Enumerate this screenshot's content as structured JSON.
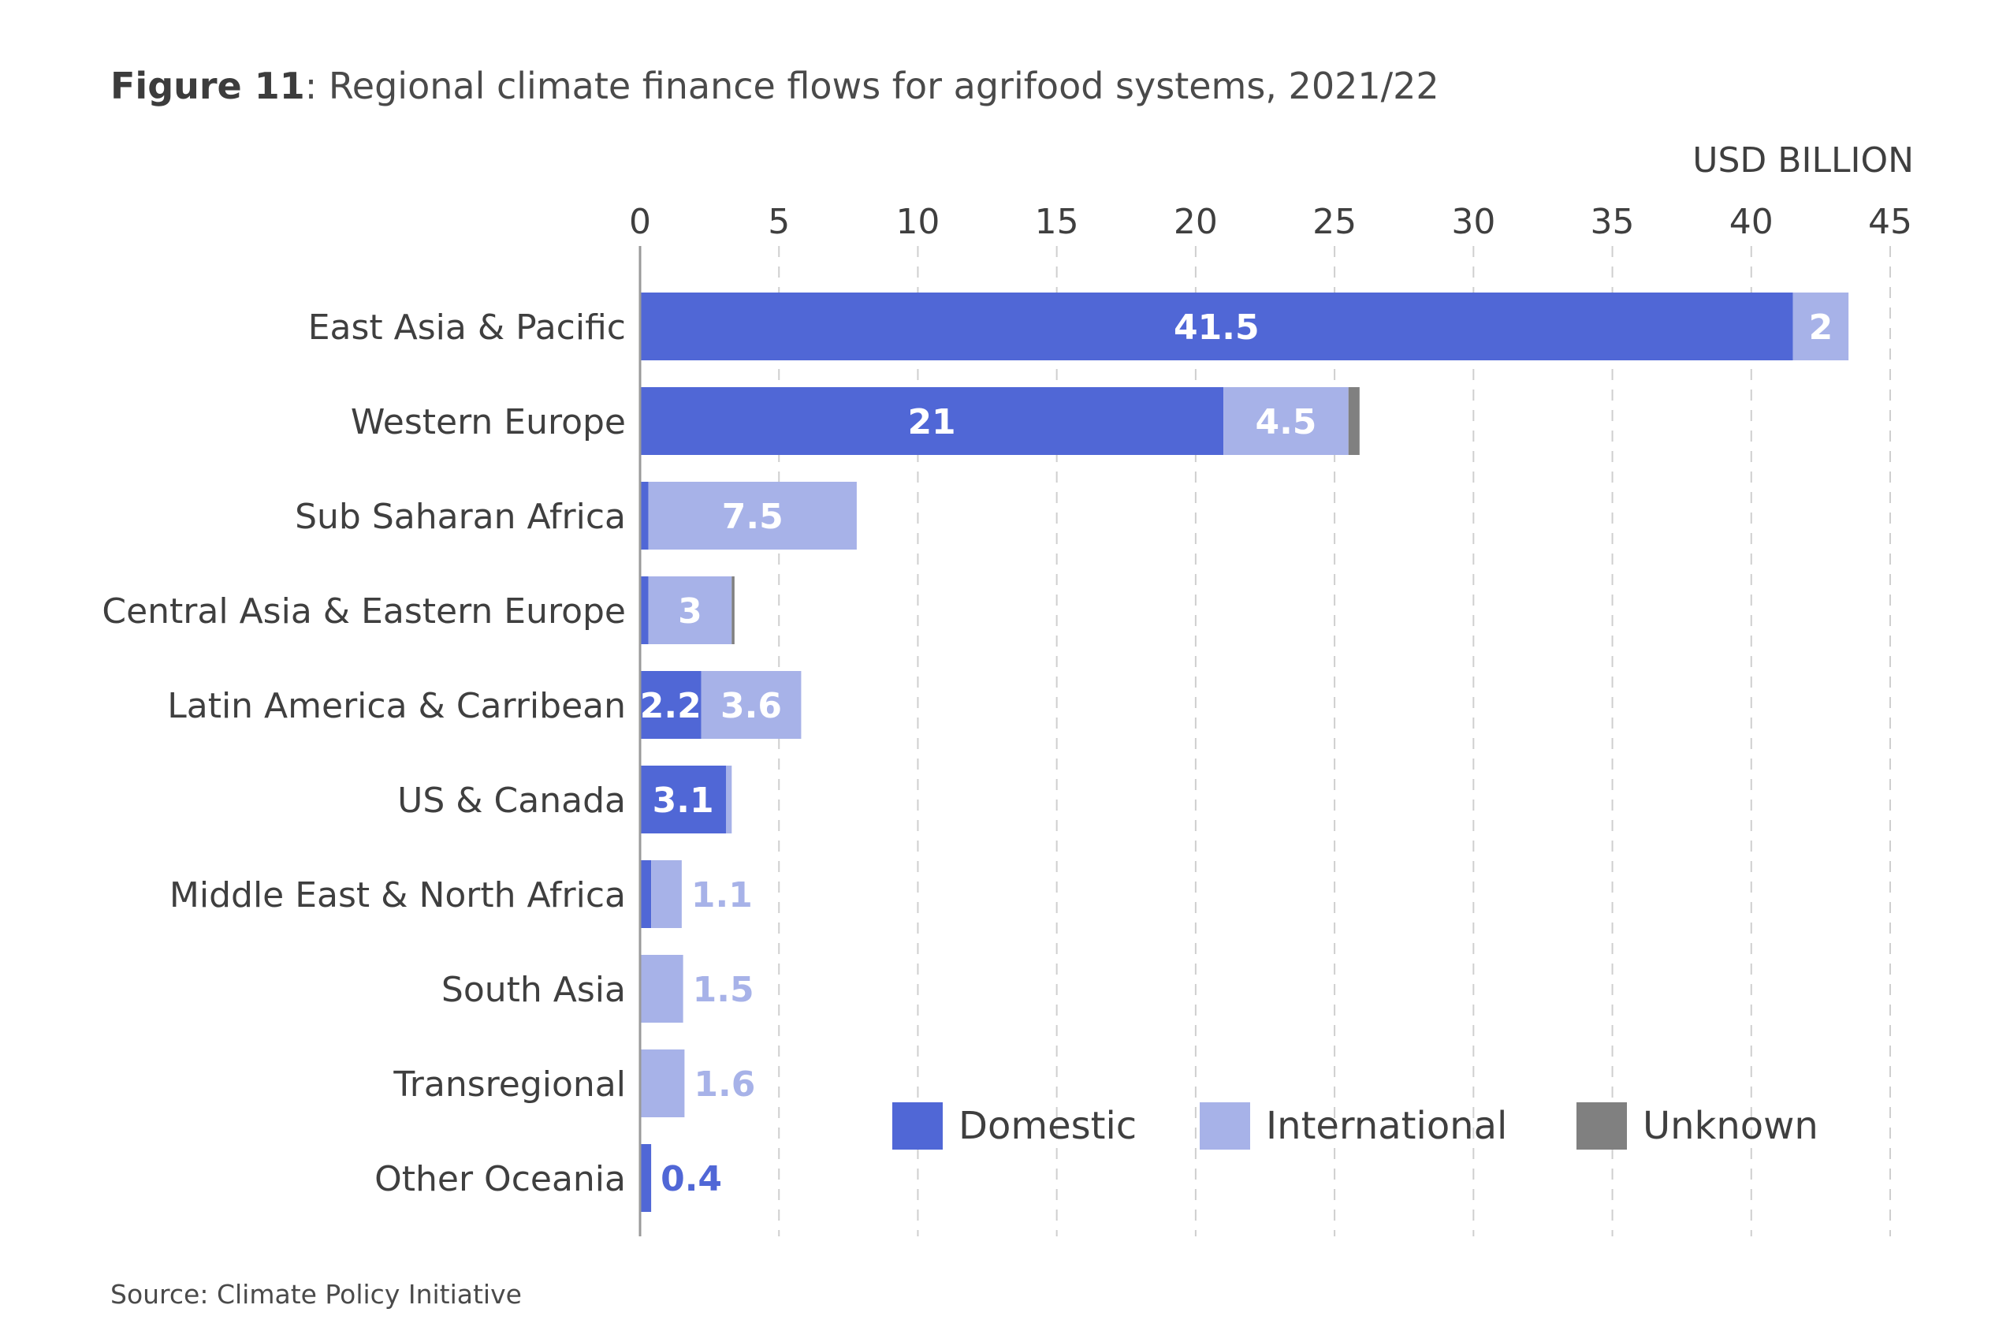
{
  "figure": {
    "label": "Figure 11",
    "title": ": Regional climate finance flows for agrifood systems, 2021/22",
    "source": "Source: Climate Policy Initiative"
  },
  "chart_data": {
    "type": "bar",
    "orientation": "horizontal",
    "stacked": true,
    "unit_label": "USD BILLION",
    "xlim": [
      0,
      45
    ],
    "x_ticks": [
      0,
      5,
      10,
      15,
      20,
      25,
      30,
      35,
      40,
      45
    ],
    "grid": "vertical dashed",
    "categories": [
      "East Asia & Pacific",
      "Western Europe",
      "Sub Saharan Africa",
      "Central Asia & Eastern Europe",
      "Latin America & Carribean",
      "US & Canada",
      "Middle East & North Africa",
      "South Asia",
      "Transregional",
      "Other Oceania"
    ],
    "series": [
      {
        "name": "Domestic",
        "color": "#5067d6",
        "values": [
          41.5,
          21,
          0.3,
          0.3,
          2.2,
          3.1,
          0.4,
          0.05,
          0,
          0.4
        ]
      },
      {
        "name": "International",
        "color": "#a7b2e8",
        "values": [
          2,
          4.5,
          7.5,
          3,
          3.6,
          0.2,
          1.1,
          1.5,
          1.6,
          0
        ]
      },
      {
        "name": "Unknown",
        "color": "#808080",
        "values": [
          0,
          0.4,
          0,
          0.1,
          0,
          0,
          0,
          0,
          0,
          0
        ]
      }
    ],
    "data_labels": [
      [
        {
          "text": "41.5",
          "series": 0,
          "position": "inside"
        },
        {
          "text": "2",
          "series": 1,
          "position": "inside"
        }
      ],
      [
        {
          "text": "21",
          "series": 0,
          "position": "inside"
        },
        {
          "text": "4.5",
          "series": 1,
          "position": "inside"
        }
      ],
      [
        {
          "text": "7.5",
          "series": 1,
          "position": "inside"
        }
      ],
      [
        {
          "text": "3",
          "series": 1,
          "position": "inside"
        }
      ],
      [
        {
          "text": "2.2",
          "series": 0,
          "position": "inside"
        },
        {
          "text": "3.6",
          "series": 1,
          "position": "inside"
        }
      ],
      [
        {
          "text": "3.1",
          "series": 0,
          "position": "inside"
        }
      ],
      [
        {
          "text": "1.1",
          "series": 1,
          "position": "outside"
        }
      ],
      [
        {
          "text": "1.5",
          "series": 1,
          "position": "outside"
        }
      ],
      [
        {
          "text": "1.6",
          "series": 1,
          "position": "outside"
        }
      ],
      [
        {
          "text": "0.4",
          "series": 0,
          "position": "outside"
        }
      ]
    ],
    "legend": {
      "placement": "bottom-right",
      "entries": [
        "Domestic",
        "International",
        "Unknown"
      ]
    }
  }
}
